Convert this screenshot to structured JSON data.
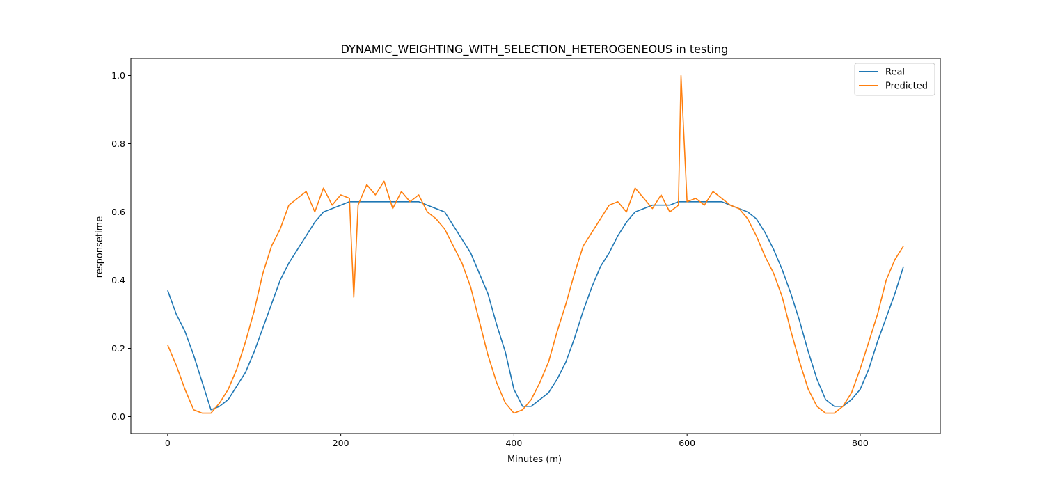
{
  "chart_data": {
    "type": "line",
    "title": "DYNAMIC_WEIGHTING_WITH_SELECTION_HETEROGENEOUS in testing",
    "xlabel": "Minutes (m)",
    "ylabel": "responsetime",
    "xlim": [
      -42.5,
      892.5
    ],
    "ylim": [
      -0.05,
      1.05
    ],
    "xticks": [
      0,
      200,
      400,
      600,
      800
    ],
    "yticks": [
      0.0,
      0.2,
      0.4,
      0.6,
      0.8,
      1.0
    ],
    "xtick_labels": [
      "0",
      "200",
      "400",
      "600",
      "800"
    ],
    "ytick_labels": [
      "0.0",
      "0.2",
      "0.4",
      "0.6",
      "0.8",
      "1.0"
    ],
    "grid": false,
    "legend": "top-right",
    "series": [
      {
        "name": "Real",
        "color": "#1f77b4",
        "x": [
          0,
          10,
          20,
          30,
          40,
          50,
          60,
          70,
          80,
          90,
          100,
          110,
          120,
          130,
          140,
          150,
          160,
          170,
          180,
          190,
          200,
          210,
          220,
          230,
          240,
          250,
          260,
          270,
          280,
          290,
          300,
          310,
          320,
          330,
          340,
          350,
          360,
          370,
          380,
          390,
          400,
          410,
          420,
          430,
          440,
          450,
          460,
          470,
          480,
          490,
          500,
          510,
          520,
          530,
          540,
          550,
          560,
          570,
          580,
          590,
          600,
          610,
          620,
          630,
          640,
          650,
          660,
          670,
          680,
          690,
          700,
          710,
          720,
          730,
          740,
          750,
          760,
          770,
          780,
          790,
          800,
          810,
          820,
          830,
          840,
          850
        ],
        "values": [
          0.37,
          0.3,
          0.25,
          0.18,
          0.1,
          0.02,
          0.03,
          0.05,
          0.09,
          0.13,
          0.19,
          0.26,
          0.33,
          0.4,
          0.45,
          0.49,
          0.53,
          0.57,
          0.6,
          0.61,
          0.62,
          0.63,
          0.63,
          0.63,
          0.63,
          0.63,
          0.63,
          0.63,
          0.63,
          0.63,
          0.62,
          0.61,
          0.6,
          0.56,
          0.52,
          0.48,
          0.42,
          0.36,
          0.27,
          0.19,
          0.08,
          0.03,
          0.03,
          0.05,
          0.07,
          0.11,
          0.16,
          0.23,
          0.31,
          0.38,
          0.44,
          0.48,
          0.53,
          0.57,
          0.6,
          0.61,
          0.62,
          0.62,
          0.62,
          0.63,
          0.63,
          0.63,
          0.63,
          0.63,
          0.63,
          0.62,
          0.61,
          0.6,
          0.58,
          0.54,
          0.49,
          0.43,
          0.36,
          0.28,
          0.19,
          0.11,
          0.05,
          0.03,
          0.03,
          0.05,
          0.08,
          0.14,
          0.22,
          0.29,
          0.36,
          0.44
        ]
      },
      {
        "name": "Predicted",
        "color": "#ff7f0e",
        "x": [
          0,
          10,
          20,
          30,
          40,
          50,
          60,
          70,
          80,
          90,
          100,
          110,
          120,
          130,
          140,
          150,
          160,
          170,
          180,
          190,
          200,
          210,
          215,
          220,
          230,
          240,
          250,
          260,
          270,
          280,
          290,
          300,
          310,
          320,
          330,
          340,
          350,
          360,
          370,
          380,
          390,
          400,
          410,
          420,
          430,
          440,
          450,
          460,
          470,
          480,
          490,
          500,
          510,
          520,
          530,
          540,
          550,
          560,
          570,
          580,
          590,
          593,
          600,
          610,
          620,
          630,
          640,
          650,
          660,
          670,
          680,
          690,
          700,
          710,
          720,
          730,
          740,
          750,
          760,
          770,
          780,
          790,
          800,
          810,
          820,
          830,
          840,
          850
        ],
        "values": [
          0.21,
          0.15,
          0.08,
          0.02,
          0.01,
          0.01,
          0.04,
          0.08,
          0.14,
          0.22,
          0.31,
          0.42,
          0.5,
          0.55,
          0.62,
          0.64,
          0.66,
          0.6,
          0.67,
          0.62,
          0.65,
          0.64,
          0.35,
          0.62,
          0.68,
          0.65,
          0.69,
          0.61,
          0.66,
          0.63,
          0.65,
          0.6,
          0.58,
          0.55,
          0.5,
          0.45,
          0.38,
          0.28,
          0.18,
          0.1,
          0.04,
          0.01,
          0.02,
          0.05,
          0.1,
          0.16,
          0.25,
          0.33,
          0.42,
          0.5,
          0.54,
          0.58,
          0.62,
          0.63,
          0.6,
          0.67,
          0.64,
          0.61,
          0.65,
          0.6,
          0.62,
          1.0,
          0.63,
          0.64,
          0.62,
          0.66,
          0.64,
          0.62,
          0.61,
          0.58,
          0.53,
          0.47,
          0.42,
          0.35,
          0.25,
          0.16,
          0.08,
          0.03,
          0.01,
          0.01,
          0.03,
          0.07,
          0.14,
          0.22,
          0.3,
          0.4,
          0.46,
          0.5
        ]
      }
    ]
  }
}
